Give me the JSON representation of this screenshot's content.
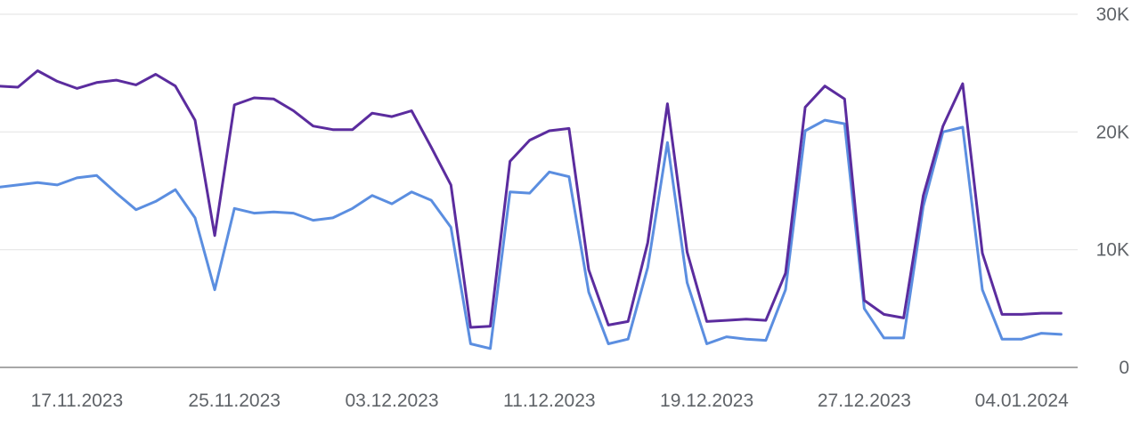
{
  "chart_data": {
    "type": "line",
    "title": "",
    "xlabel": "",
    "ylabel": "",
    "x_axis": {
      "start_date": "2023-11-13",
      "end_date": "2024-01-07",
      "tick_labels": [
        "17.11.2023",
        "25.11.2023",
        "03.12.2023",
        "11.12.2023",
        "19.12.2023",
        "27.12.2023",
        "04.01.2024"
      ]
    },
    "y_axis": {
      "range": [
        0,
        30000
      ],
      "ticks": [
        0,
        10000,
        20000,
        30000
      ],
      "tick_labels": [
        "0",
        "10K",
        "20K",
        "30K"
      ],
      "position": "right"
    },
    "grid": true,
    "legend": "none",
    "series": [
      {
        "color": "#5b2c9e",
        "values": [
          23900,
          23800,
          25200,
          24300,
          23700,
          24200,
          24400,
          24000,
          24900,
          23900,
          21000,
          11200,
          22300,
          22900,
          22800,
          21800,
          20500,
          20200,
          20200,
          21600,
          21300,
          21800,
          18700,
          15500,
          3400,
          3500,
          17500,
          19300,
          20100,
          20300,
          8300,
          3600,
          3900,
          10600,
          22400,
          9800,
          3900,
          4000,
          4100,
          4000,
          8000,
          22100,
          23900,
          22800,
          5700,
          4500,
          4200,
          14600,
          20500,
          24100,
          9700,
          4500,
          4500,
          4600,
          4600
        ]
      },
      {
        "color": "#5b8ee0",
        "values": [
          15300,
          15500,
          15700,
          15500,
          16100,
          16300,
          14800,
          13400,
          14100,
          15100,
          12700,
          6600,
          13500,
          13100,
          13200,
          13100,
          12500,
          12700,
          13500,
          14600,
          13900,
          14900,
          14200,
          11900,
          2000,
          1600,
          14900,
          14800,
          16600,
          16200,
          6400,
          2000,
          2400,
          8500,
          19100,
          7200,
          2000,
          2600,
          2400,
          2300,
          6600,
          20100,
          21000,
          20700,
          5000,
          2500,
          2500,
          13700,
          20000,
          20400,
          6600,
          2400,
          2400,
          2900,
          2800
        ]
      }
    ]
  }
}
